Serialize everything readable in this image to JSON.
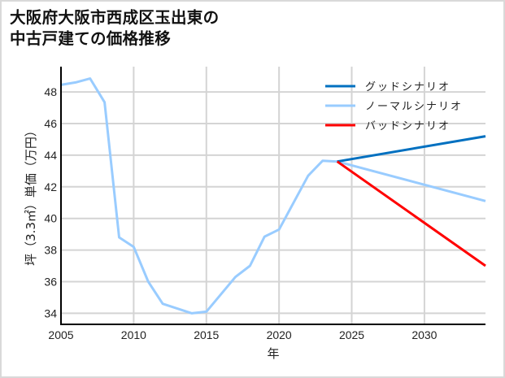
{
  "title_lines": [
    "大阪府大阪市西成区玉出東の",
    "中古戸建ての価格推移"
  ],
  "chart_data": {
    "type": "line",
    "title": "大阪府大阪市西成区玉出東の中古戸建ての価格推移",
    "xlabel": "年",
    "ylabel": "坪（3.3㎡）単価（万円）",
    "xlim": [
      2005,
      2034.2
    ],
    "ylim": [
      33.3,
      49.6
    ],
    "xticks": [
      2005,
      2010,
      2015,
      2020,
      2025,
      2030
    ],
    "yticks": [
      34,
      36,
      38,
      40,
      42,
      44,
      46,
      48
    ],
    "grid": true,
    "legend_position": "upper right",
    "series": [
      {
        "name": "グッドシナリオ",
        "color": "#0070c0",
        "x": [
          2024,
          2034.2
        ],
        "y": [
          43.6,
          45.2
        ]
      },
      {
        "name": "ノーマルシナリオ",
        "color": "#99ccff",
        "x": [
          2005,
          2006,
          2007,
          2008,
          2009,
          2010,
          2011,
          2012,
          2014,
          2015,
          2017,
          2018,
          2019,
          2020,
          2021,
          2022,
          2023,
          2024,
          2034.2
        ],
        "y": [
          48.45,
          48.6,
          48.85,
          47.35,
          38.8,
          38.2,
          36.0,
          34.6,
          34.0,
          34.1,
          36.3,
          37.0,
          38.85,
          39.3,
          41.0,
          42.7,
          43.65,
          43.6,
          41.1
        ]
      },
      {
        "name": "バッドシナリオ",
        "color": "#ff0000",
        "x": [
          2024,
          2034.2
        ],
        "y": [
          43.6,
          37.0
        ]
      }
    ]
  }
}
